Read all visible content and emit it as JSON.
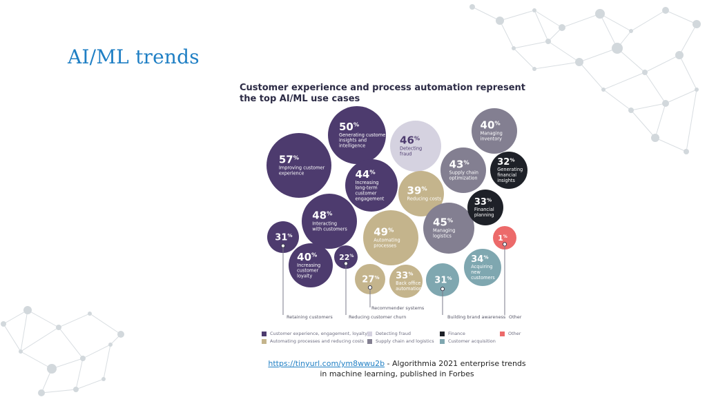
{
  "slide": {
    "title": "AI/ML trends"
  },
  "chart_title": "Customer experience and process automation represent the top AI/ML use cases",
  "colors": {
    "customer_experience": "#4d3b6e",
    "automating": "#c4b48c",
    "detecting_fraud": "#d5d2e0",
    "supply_chain": "#837f91",
    "finance": "#1e2128",
    "customer_acquisition": "#7fa7b0",
    "other": "#ec6a6a",
    "title_blue": "#1f7fc4"
  },
  "chart_data": {
    "type": "bubble",
    "title": "Customer experience and process automation represent the top AI/ML use cases",
    "value_unit": "%",
    "bubbles": [
      {
        "value": 57,
        "label": "Improving customer experience",
        "category": "customer_experience"
      },
      {
        "value": 50,
        "label": "Generating customer insights and intelligence",
        "category": "customer_experience"
      },
      {
        "value": 44,
        "label": "Increasing long-term customer engagement",
        "category": "customer_experience"
      },
      {
        "value": 48,
        "label": "Interacting with customers",
        "category": "customer_experience"
      },
      {
        "value": 31,
        "label": "",
        "category": "customer_experience",
        "callout": "Retaining customers"
      },
      {
        "value": 40,
        "label": "Increasing customer loyalty",
        "category": "customer_experience"
      },
      {
        "value": 22,
        "label": "",
        "category": "customer_experience",
        "callout": "Reducing customer churn"
      },
      {
        "value": 46,
        "label": "Detecting fraud",
        "category": "detecting_fraud"
      },
      {
        "value": 39,
        "label": "Reducing costs",
        "category": "automating"
      },
      {
        "value": 49,
        "label": "Automating processes",
        "category": "automating"
      },
      {
        "value": 27,
        "label": "",
        "category": "automating",
        "callout": "Recommender systems"
      },
      {
        "value": 33,
        "label": "Back office automation",
        "category": "automating"
      },
      {
        "value": 40,
        "label": "Managing inventory",
        "category": "supply_chain"
      },
      {
        "value": 43,
        "label": "Supply chain optimization",
        "category": "supply_chain"
      },
      {
        "value": 45,
        "label": "Managing logistics",
        "category": "supply_chain"
      },
      {
        "value": 32,
        "label": "Generating financial insights",
        "category": "finance"
      },
      {
        "value": 33,
        "label": "Financial planning",
        "category": "finance"
      },
      {
        "value": 1,
        "label": "",
        "category": "other",
        "callout": "Other"
      },
      {
        "value": 34,
        "label": "Acquiring new customers",
        "category": "customer_acquisition"
      },
      {
        "value": 31,
        "label": "",
        "category": "customer_acquisition",
        "callout": "Building brand awareness"
      }
    ],
    "legend": [
      {
        "category": "customer_experience",
        "label": "Customer experience, engagement, loyalty"
      },
      {
        "category": "detecting_fraud",
        "label": "Detecting fraud"
      },
      {
        "category": "finance",
        "label": "Finance"
      },
      {
        "category": "other",
        "label": "Other"
      },
      {
        "category": "automating",
        "label": "Automating processes and reducing costs"
      },
      {
        "category": "supply_chain",
        "label": "Supply chain and logistics"
      },
      {
        "category": "customer_acquisition",
        "label": "Customer acquisition"
      }
    ],
    "legend_position": "bottom"
  },
  "caption": {
    "link_text": "https://tinyurl.com/ym8wwu2b",
    "line1_rest": " - Algorithmia 2021 enterprise trends",
    "line2": "in machine learning, published in Forbes"
  }
}
